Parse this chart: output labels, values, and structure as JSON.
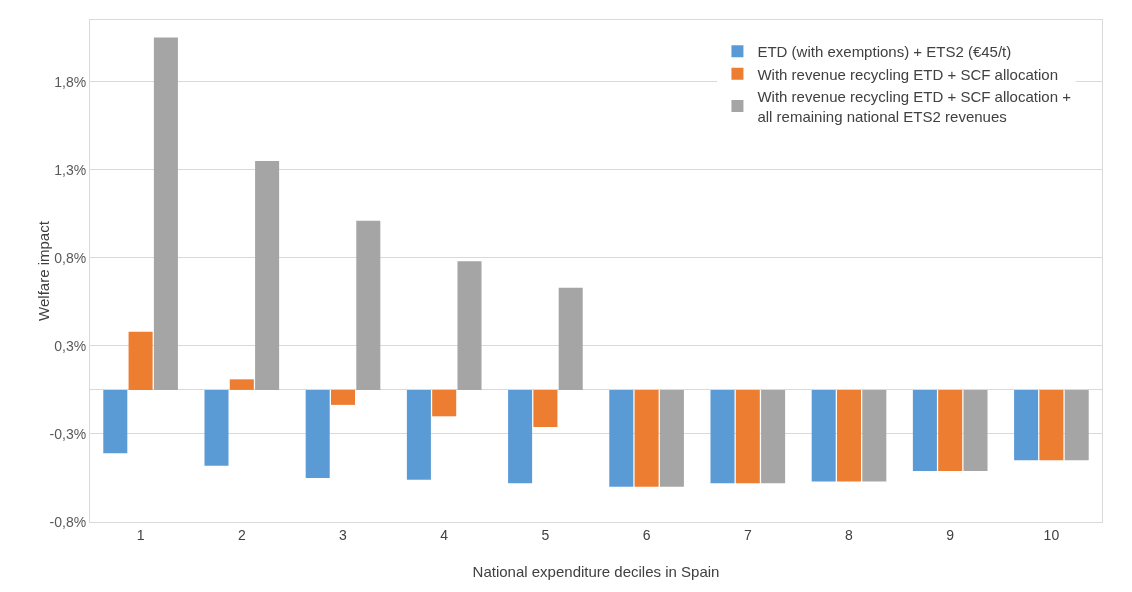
{
  "chart_data": {
    "type": "bar",
    "xlabel": "National expenditure deciles in Spain",
    "ylabel": "Welfare impact",
    "categories": [
      "1",
      "2",
      "3",
      "4",
      "5",
      "6",
      "7",
      "8",
      "9",
      "10"
    ],
    "series": [
      {
        "name": "ETD (with exemptions) + ETS2 (€45/t)",
        "color": "#5b9bd5",
        "values": [
          -0.36,
          -0.43,
          -0.5,
          -0.51,
          -0.53,
          -0.55,
          -0.53,
          -0.52,
          -0.46,
          -0.4
        ]
      },
      {
        "name": "With revenue recycling ETD + SCF allocation",
        "color": "#ed7d31",
        "values": [
          0.33,
          0.06,
          -0.085,
          -0.15,
          -0.21,
          -0.55,
          -0.53,
          -0.52,
          -0.46,
          -0.4
        ]
      },
      {
        "name": "With revenue recycling ETD + SCF allocation + all remaining national ETS2 revenues",
        "color": "#a5a5a5",
        "values": [
          2.0,
          1.3,
          0.96,
          0.73,
          0.58,
          -0.55,
          -0.53,
          -0.52,
          -0.46,
          -0.4
        ]
      }
    ],
    "ylim": [
      -0.75,
      2.1
    ],
    "yticks": [
      {
        "value": -0.75,
        "label": "-0,8%"
      },
      {
        "value": -0.25,
        "label": "-0,3%"
      },
      {
        "value": 0.25,
        "label": "0,3%"
      },
      {
        "value": 0.75,
        "label": "0,8%"
      },
      {
        "value": 1.25,
        "label": "1,3%"
      },
      {
        "value": 1.75,
        "label": "1,8%"
      }
    ],
    "grid": "y",
    "legend": "top right"
  }
}
